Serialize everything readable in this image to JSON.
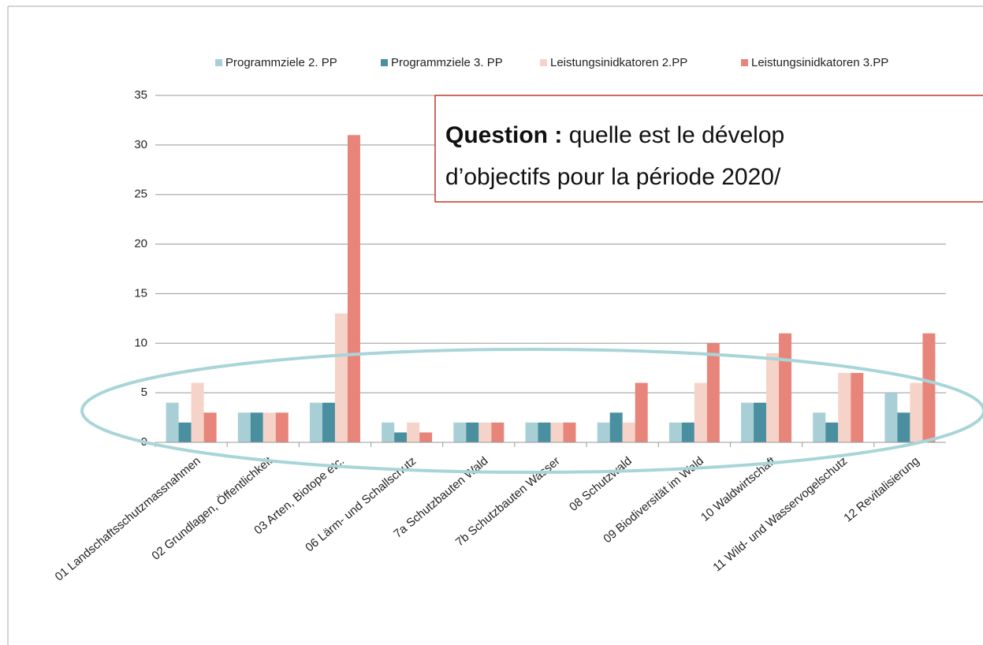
{
  "chart_data": {
    "type": "bar",
    "categories": [
      "01 Landschaftsschutzmassnahmen",
      "02 Grundlagen, Öffentlichkeit",
      "03 Arten, Biotope etc.",
      "06 Lärm- und Schallschutz",
      "7a Schutzbauten Wald",
      "7b Schutzbauten Wasser",
      "08 Schutzwald",
      "09 Biodiversität im Wald",
      "10 Waldwirtschaft",
      "11 Wild- und Wasservogelschutz",
      "12 Revitalisierung"
    ],
    "series": [
      {
        "name": "Programmziele 2. PP",
        "color": "#a9cfd6",
        "values": [
          4,
          3,
          4,
          2,
          2,
          2,
          2,
          2,
          4,
          3,
          5
        ]
      },
      {
        "name": "Programmziele 3. PP",
        "color": "#4a8fa0",
        "values": [
          2,
          3,
          4,
          1,
          2,
          2,
          3,
          2,
          4,
          2,
          3
        ]
      },
      {
        "name": "Leistungsinidkatoren 2.PP",
        "color": "#f6d3c8",
        "values": [
          6,
          3,
          13,
          2,
          2,
          2,
          2,
          6,
          9,
          7,
          6
        ]
      },
      {
        "name": "Leistungsinidkatoren 3.PP",
        "color": "#e8857a",
        "values": [
          3,
          3,
          31,
          1,
          2,
          2,
          6,
          10,
          11,
          7,
          11
        ]
      }
    ],
    "ylim": [
      0,
      35
    ],
    "yticks": [
      0,
      5,
      10,
      15,
      20,
      25,
      30,
      35
    ],
    "grid": true,
    "legend": "top",
    "annotation": {
      "label": "Question :",
      "line1": "quelle est le dévelop",
      "line2": "d’objectifs pour la période 2020/"
    }
  }
}
